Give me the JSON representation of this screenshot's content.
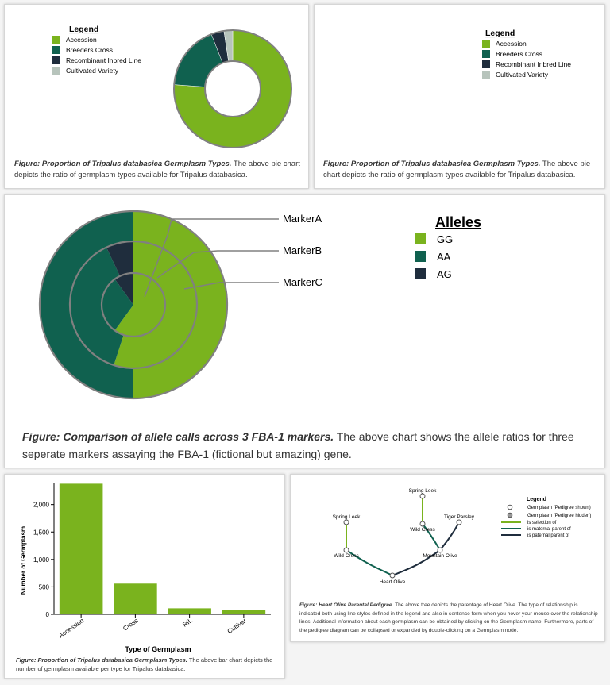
{
  "colors": {
    "GG": "#7ab31e",
    "AA": "#10614f",
    "AG": "#1f2d3d",
    "accession": "#7ab31e",
    "breeders": "#10614f",
    "ril": "#1f2d3d",
    "cultivated": "#b7c4bc",
    "bar": "#7ab31e",
    "border_gray": "#808080"
  },
  "donut_panel": {
    "legend_title": "Legend",
    "caption_bold": "Figure: Proportion of Tripalus databasica Germplasm Types.",
    "caption_rest": " The above pie chart depicts the ratio of germplasm types available for Tripalus databasica."
  },
  "pie_panel": {
    "legend_title": "Legend",
    "caption_bold": "Figure: Proportion of Tripalus databasica Germplasm Types.",
    "caption_rest": " The above pie chart depicts the ratio of germplasm types available for Tripalus databasica."
  },
  "allele_panel": {
    "legend_title": "Alleles",
    "caption_bold": "Figure: Comparison of allele calls across 3 FBA-1 markers.",
    "caption_rest": " The above chart shows the allele ratios for three seperate markers assaying the FBA-1 (fictional but amazing) gene."
  },
  "bar_panel": {
    "caption_bold": "Figure: Proportion of Tripalus databasica Germplasm Types.",
    "caption_rest": " The above bar chart depicts the number of germplasm available per type for Tripalus databasica."
  },
  "pedigree_panel": {
    "legend_title": "Legend",
    "legend_items": [
      "Germplasm (Pedigree shown)",
      "Germplasm (Pedigree hidden)",
      "is selection of",
      "is maternal parent of",
      "is paternal parent of"
    ],
    "caption_bold": "Figure: Heart Olive Parental Pedigree.",
    "caption_rest": " The above tree depicts the parentage of Heart Olive. The type of relationship is indicated both using line styles defined in the legend and also in sentence form when you hover your mouse over the relationship lines. Additional information about each germplasm can be obtained by clicking on the Germplasm name. Furthermore, parts of the pedigree diagram can be collapsed or expanded by double-clicking on a Germplasm node.",
    "nodes": [
      "Spring Leek",
      "Spring Leek",
      "Wild Cress",
      "Wild Cress",
      "Tiger Parsley",
      "Mountain Olive",
      "Heart Olive"
    ]
  },
  "chart_data": [
    {
      "type": "pie",
      "style": "donut",
      "title": "",
      "legend": [
        "Accession",
        "Breeders Cross",
        "Recombinant Inbred Line",
        "Cultivated Variety"
      ],
      "values": [
        2380,
        560,
        110,
        75
      ],
      "legend_position": "top-left"
    },
    {
      "type": "pie",
      "title": "",
      "legend": [
        "Accession",
        "Breeders Cross",
        "Recombinant Inbred Line",
        "Cultivated Variety"
      ],
      "values": [
        2380,
        560,
        110,
        75
      ],
      "legend_position": "top-right"
    },
    {
      "type": "pie",
      "style": "nested-rings",
      "title": "",
      "legend": [
        "GG",
        "AA",
        "AG"
      ],
      "series": [
        {
          "name": "MarkerA",
          "values": [
            0.5,
            0.5,
            0
          ]
        },
        {
          "name": "MarkerB",
          "values": [
            0.55,
            0.38,
            0.07
          ]
        },
        {
          "name": "MarkerC",
          "values": [
            0.6,
            0.3,
            0.1
          ]
        }
      ],
      "legend_position": "right"
    },
    {
      "type": "bar",
      "categories": [
        "Accession",
        "Cross",
        "RIL",
        "Cultivar"
      ],
      "values": [
        2380,
        560,
        110,
        75
      ],
      "xlabel": "Type of Germplasm",
      "ylabel": "Number of Germplasm",
      "yticks": [
        "0",
        "500",
        "1,000",
        "1,500",
        "2,000"
      ],
      "ylim": [
        0,
        2400
      ],
      "grid": false
    }
  ]
}
